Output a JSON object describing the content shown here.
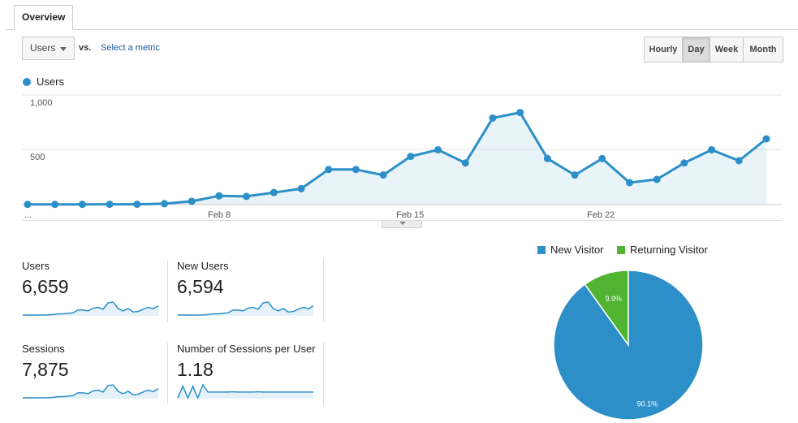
{
  "tabs": {
    "overview_label": "Overview"
  },
  "controls": {
    "metric_select_value": "Users",
    "vs_label": "vs.",
    "select_metric_link": "Select a metric",
    "ranges": [
      {
        "label": "Hourly",
        "active": false
      },
      {
        "label": "Day",
        "active": true
      },
      {
        "label": "Week",
        "active": false
      },
      {
        "label": "Month",
        "active": false
      }
    ]
  },
  "chart_data": [
    {
      "type": "area",
      "series": [
        {
          "name": "Users",
          "color": "#2c8fc8",
          "values": [
            2,
            2,
            2,
            3,
            3,
            8,
            30,
            80,
            75,
            110,
            145,
            320,
            320,
            270,
            440,
            500,
            380,
            790,
            840,
            420,
            270,
            420,
            200,
            230,
            380,
            500,
            400,
            600
          ]
        }
      ],
      "y_ticks": [
        "1,000",
        "500"
      ],
      "x_ticks": [
        "...",
        "Feb 8",
        "Feb 15",
        "Feb 22"
      ],
      "ylim": [
        0,
        1000
      ],
      "grid": true,
      "legend": "top-left"
    },
    {
      "type": "pie",
      "slices": [
        {
          "name": "New Visitor",
          "value": 90.1,
          "label": "90.1%",
          "color": "#2c8fc8"
        },
        {
          "name": "Returning Visitor",
          "value": 9.9,
          "label": "9.9%",
          "color": "#50b432"
        }
      ],
      "legend": "top"
    }
  ],
  "scorecards": [
    {
      "label": "Users",
      "value": "6,659"
    },
    {
      "label": "New Users",
      "value": "6,594"
    },
    {
      "label": "Sessions",
      "value": "7,875"
    },
    {
      "label": "Number of Sessions per User",
      "value": "1.18"
    }
  ],
  "sparklines": {
    "trend": [
      2,
      2,
      2,
      3,
      3,
      8,
      30,
      80,
      75,
      110,
      145,
      320,
      320,
      270,
      440,
      500,
      380,
      790,
      840,
      420,
      270,
      420,
      200,
      230,
      380,
      500,
      400,
      600
    ],
    "sessions_per_user": [
      1.0,
      1.4,
      1.0,
      1.4,
      1.0,
      1.45,
      1.2,
      1.2,
      1.2,
      1.2,
      1.2,
      1.21,
      1.2,
      1.2,
      1.2,
      1.2,
      1.21,
      1.2,
      1.2,
      1.2,
      1.2,
      1.2,
      1.2,
      1.2,
      1.2,
      1.2,
      1.2,
      1.2
    ]
  }
}
